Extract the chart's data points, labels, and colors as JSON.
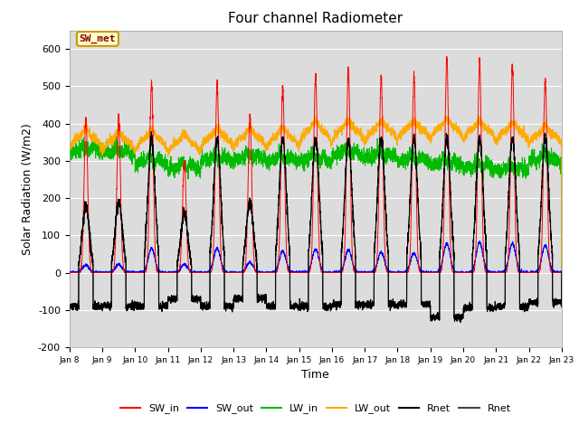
{
  "title": "Four channel Radiometer",
  "xlabel": "Time",
  "ylabel": "Solar Radiation (W/m2)",
  "ylim": [
    -200,
    650
  ],
  "xtick_labels": [
    "Jan 8",
    "Jan 9",
    "Jan 10",
    "Jan 11",
    "Jan 12",
    "Jan 13",
    "Jan 14",
    "Jan 15",
    "Jan 16",
    "Jan 17",
    "Jan 18",
    "Jan 19",
    "Jan 20",
    "Jan 21",
    "Jan 22",
    "Jan 23"
  ],
  "ytick_labels": [
    -200,
    -100,
    0,
    100,
    200,
    300,
    400,
    500,
    600
  ],
  "colors": {
    "SW_in": "#ff0000",
    "SW_out": "#0000ff",
    "LW_in": "#00bb00",
    "LW_out": "#ffaa00",
    "Rnet_black": "#000000",
    "Rnet_dark": "#444444"
  },
  "annotation": {
    "text": "SW_met",
    "color": "#880000",
    "bg": "#ffffcc",
    "border": "#cc9900"
  },
  "background_color": "#dcdcdc",
  "axes_bg": "#dcdcdc"
}
